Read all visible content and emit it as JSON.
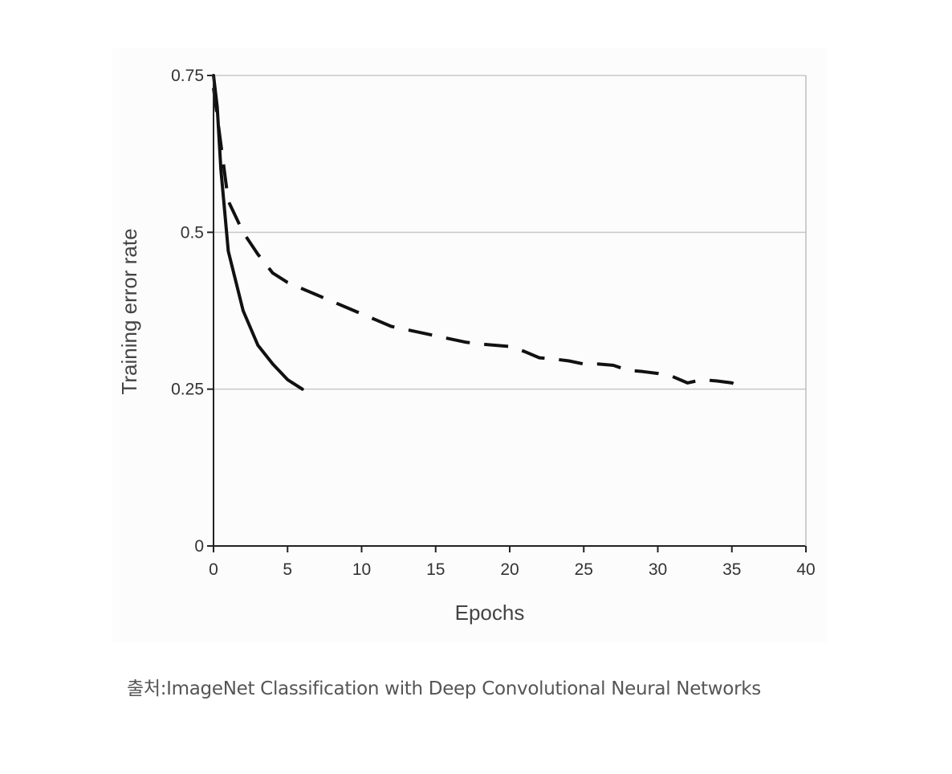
{
  "caption": "출처:ImageNet Classification with Deep Convolutional Neural Networks",
  "chart_data": {
    "type": "line",
    "title": "",
    "xlabel": "Epochs",
    "ylabel": "Training error rate",
    "xlim": [
      0,
      40
    ],
    "ylim": [
      0,
      0.75
    ],
    "xticks": [
      0,
      5,
      10,
      15,
      20,
      25,
      30,
      35,
      40
    ],
    "xtick_labels": [
      "0",
      "5",
      "10",
      "15",
      "20",
      "25",
      "30",
      "35",
      "40"
    ],
    "yticks": [
      0,
      0.25,
      0.5,
      0.75
    ],
    "ytick_labels": [
      "0",
      "0.25",
      "0.5",
      "0.75"
    ],
    "grid": "horizontal",
    "legend": "none",
    "series": [
      {
        "style": "solid",
        "color": "#111111",
        "x": [
          0,
          0.25,
          0.5,
          1,
          2,
          3,
          4,
          5,
          6
        ],
        "y": [
          0.75,
          0.7,
          0.6,
          0.47,
          0.375,
          0.32,
          0.29,
          0.265,
          0.25
        ]
      },
      {
        "style": "dashed",
        "color": "#111111",
        "x": [
          0,
          0.5,
          1,
          2,
          3,
          4,
          5,
          6,
          7,
          8,
          9,
          10,
          11,
          12,
          13,
          14,
          15,
          16,
          17,
          18,
          19,
          20,
          21,
          22,
          23,
          24,
          25,
          26,
          27,
          28,
          29,
          30,
          31,
          32,
          33,
          34,
          35,
          36
        ],
        "y": [
          0.73,
          0.64,
          0.55,
          0.5,
          0.465,
          0.435,
          0.42,
          0.41,
          0.4,
          0.39,
          0.38,
          0.37,
          0.36,
          0.35,
          0.345,
          0.34,
          0.335,
          0.33,
          0.325,
          0.322,
          0.32,
          0.318,
          0.31,
          0.3,
          0.298,
          0.295,
          0.29,
          0.29,
          0.288,
          0.28,
          0.278,
          0.275,
          0.27,
          0.26,
          0.265,
          0.263,
          0.26,
          0.25
        ]
      }
    ]
  }
}
